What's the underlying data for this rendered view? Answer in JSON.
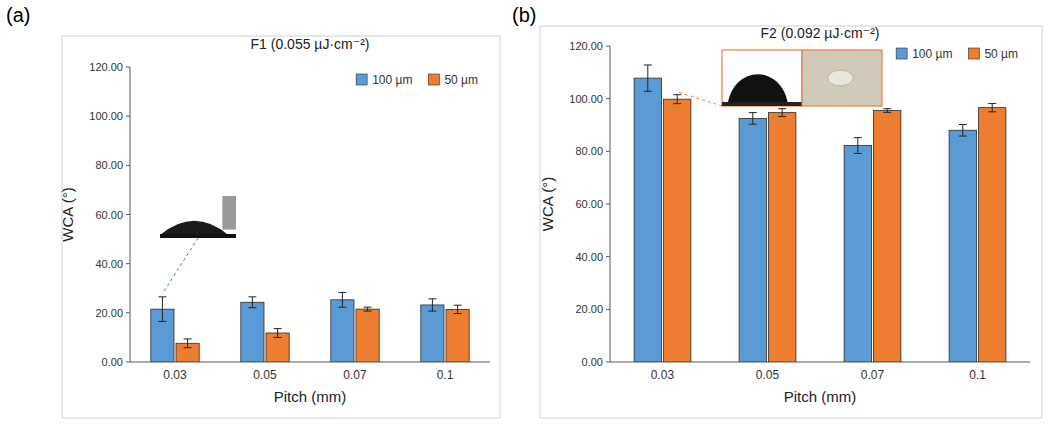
{
  "chart_data": [
    {
      "type": "bar",
      "panel_label": "(a)",
      "title": "F1 (0.055 µJ·cm⁻²)",
      "x_label": "Pitch (mm)",
      "y_label": "WCA (°)",
      "categories": [
        "0.03",
        "0.05",
        "0.07",
        "0.1"
      ],
      "series": [
        {
          "name": "100 µm",
          "color": "#5b9bd5",
          "values": [
            21.5,
            24.3,
            25.3,
            23.2
          ],
          "errors": [
            5.0,
            2.2,
            3.0,
            2.5
          ]
        },
        {
          "name": "50 µm",
          "color": "#ed7d31",
          "values": [
            7.6,
            11.8,
            21.5,
            21.4
          ],
          "errors": [
            1.8,
            1.8,
            0.8,
            1.7
          ]
        }
      ],
      "ylim": [
        0,
        120
      ],
      "yticks": [
        {
          "value": 0,
          "label": "0.00"
        },
        {
          "value": 20,
          "label": "20.00"
        },
        {
          "value": 40,
          "label": "40.00"
        },
        {
          "value": 60,
          "label": "60.00"
        },
        {
          "value": 80,
          "label": "80.00"
        },
        {
          "value": 100,
          "label": "100.00"
        },
        {
          "value": 120,
          "label": "120.00"
        }
      ],
      "grid": false,
      "legend": "top-right"
    },
    {
      "type": "bar",
      "panel_label": "(b)",
      "title": "F2 (0.092 µJ·cm⁻²)",
      "x_label": "Pitch (mm)",
      "y_label": "WCA (°)",
      "categories": [
        "0.03",
        "0.05",
        "0.07",
        "0.1"
      ],
      "series": [
        {
          "name": "100 µm",
          "color": "#5b9bd5",
          "values": [
            107.8,
            92.5,
            82.2,
            88.0
          ],
          "errors": [
            5.0,
            2.2,
            3.0,
            2.2
          ]
        },
        {
          "name": "50 µm",
          "color": "#ed7d31",
          "values": [
            99.8,
            94.7,
            95.5,
            96.6
          ],
          "errors": [
            1.7,
            1.5,
            0.7,
            1.6
          ]
        }
      ],
      "ylim": [
        0,
        120
      ],
      "yticks": [
        {
          "value": 0,
          "label": "0.00"
        },
        {
          "value": 20,
          "label": "20.00"
        },
        {
          "value": 40,
          "label": "40.00"
        },
        {
          "value": 60,
          "label": "60.00"
        },
        {
          "value": 80,
          "label": "80.00"
        },
        {
          "value": 100,
          "label": "100.00"
        },
        {
          "value": 120,
          "label": "120.00"
        }
      ],
      "grid": false,
      "legend": "top-right"
    }
  ]
}
